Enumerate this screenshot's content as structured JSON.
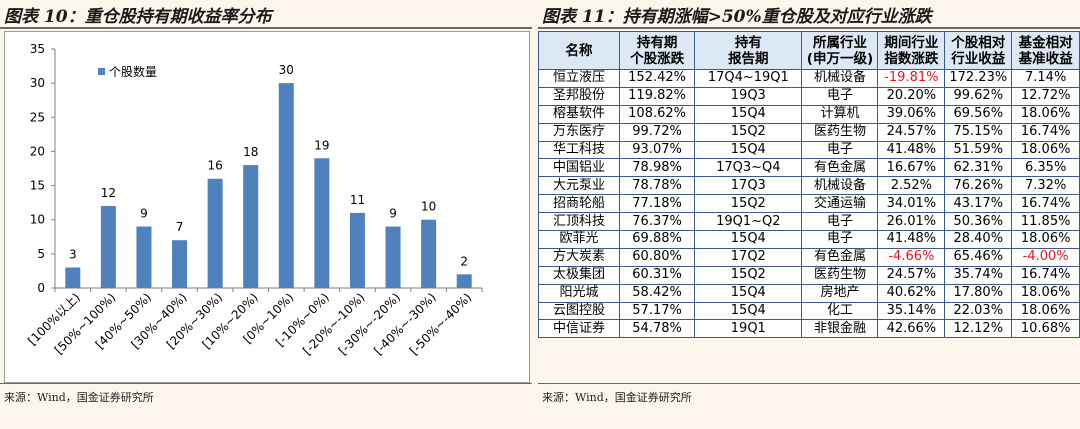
{
  "left": {
    "title": "图表 10：重仓股持有期收益率分布",
    "source": "来源：Wind，国金证券研究所"
  },
  "right": {
    "title": "图表 11：持有期涨幅>50%重仓股及对应行业涨跌",
    "source": "来源：Wind，国金证券研究所",
    "table": {
      "headers": [
        [
          "名称"
        ],
        [
          "持有期",
          "个股涨跌"
        ],
        [
          "持有",
          "报告期"
        ],
        [
          "所属行业",
          "(申万一级)"
        ],
        [
          "期间行业",
          "指数涨跌"
        ],
        [
          "个股相对",
          "行业收益"
        ],
        [
          "基金相对",
          "基准收益"
        ]
      ],
      "rows": [
        [
          "恒立液压",
          "152.42%",
          "17Q4~19Q1",
          "机械设备",
          "-19.81%",
          "172.23%",
          "7.14%"
        ],
        [
          "圣邦股份",
          "119.82%",
          "19Q3",
          "电子",
          "20.20%",
          "99.62%",
          "12.72%"
        ],
        [
          "榕基软件",
          "108.62%",
          "15Q4",
          "计算机",
          "39.06%",
          "69.56%",
          "18.06%"
        ],
        [
          "万东医疗",
          "99.72%",
          "15Q2",
          "医药生物",
          "24.57%",
          "75.15%",
          "16.74%"
        ],
        [
          "华工科技",
          "93.07%",
          "15Q4",
          "电子",
          "41.48%",
          "51.59%",
          "18.06%"
        ],
        [
          "中国铝业",
          "78.98%",
          "17Q3~Q4",
          "有色金属",
          "16.67%",
          "62.31%",
          "6.35%"
        ],
        [
          "大元泵业",
          "78.78%",
          "17Q3",
          "机械设备",
          "2.52%",
          "76.26%",
          "7.32%"
        ],
        [
          "招商轮船",
          "77.18%",
          "15Q2",
          "交通运输",
          "34.01%",
          "43.17%",
          "16.74%"
        ],
        [
          "汇顶科技",
          "76.37%",
          "19Q1~Q2",
          "电子",
          "26.01%",
          "50.36%",
          "11.85%"
        ],
        [
          "欧菲光",
          "69.88%",
          "15Q4",
          "电子",
          "41.48%",
          "28.40%",
          "18.06%"
        ],
        [
          "方大炭素",
          "60.80%",
          "17Q2",
          "有色金属",
          "-4.66%",
          "65.46%",
          "-4.00%"
        ],
        [
          "太极集团",
          "60.31%",
          "15Q2",
          "医药生物",
          "24.57%",
          "35.74%",
          "16.74%"
        ],
        [
          "阳光城",
          "58.42%",
          "15Q4",
          "房地产",
          "40.62%",
          "17.80%",
          "18.06%"
        ],
        [
          "云图控股",
          "57.17%",
          "15Q4",
          "化工",
          "35.14%",
          "22.03%",
          "18.06%"
        ],
        [
          "中信证券",
          "54.78%",
          "19Q1",
          "非银金融",
          "42.66%",
          "12.12%",
          "10.68%"
        ]
      ]
    }
  },
  "colors": {
    "bar": "#4f81bd",
    "negative": "#e8141a",
    "header_bg": "#dce8f5",
    "grid_border": "#3b5a8a"
  },
  "chart_data": {
    "type": "bar",
    "categories": [
      "[100%以上)",
      "[50%~100%)",
      "[40%~50%)",
      "[30%~40%)",
      "[20%~30%)",
      "[10%~20%)",
      "[0%~10%)",
      "[-10%~0%)",
      "[-20%~-10%)",
      "[-30%~-20%)",
      "[-40%~-30%)",
      "[-50%~-40%)"
    ],
    "series": [
      {
        "name": "个股数量",
        "values": [
          3,
          12,
          9,
          7,
          16,
          18,
          30,
          19,
          11,
          9,
          10,
          2
        ]
      }
    ],
    "ylim": [
      0,
      35
    ],
    "yticks": [
      0,
      5,
      10,
      15,
      20,
      25,
      30,
      35
    ],
    "grid": false,
    "legend": "top-left",
    "data_labels": true
  }
}
